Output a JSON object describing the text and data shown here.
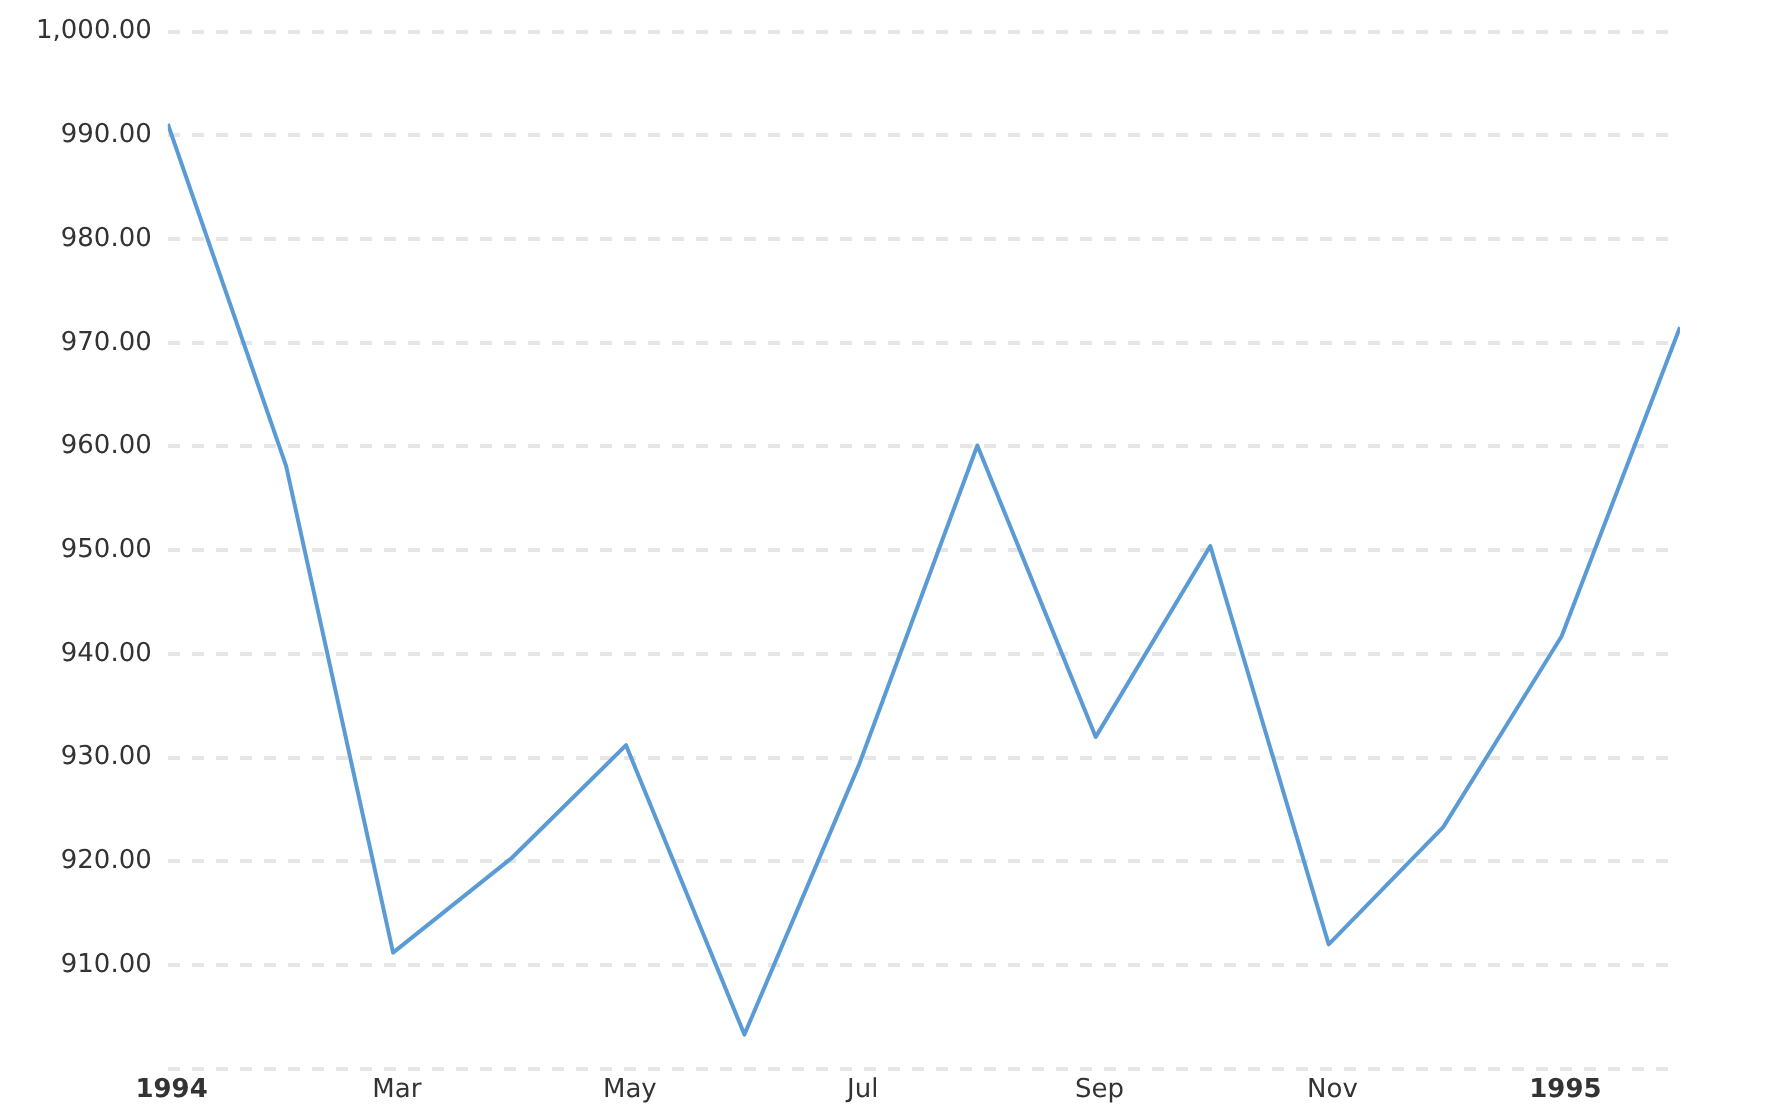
{
  "chart_data": {
    "type": "line",
    "x": [
      "1993-12-31",
      "1994-01-31",
      "1994-02-28",
      "1994-03-31",
      "1994-04-30",
      "1994-05-31",
      "1994-06-30",
      "1994-07-31",
      "1994-08-31",
      "1994-09-30",
      "1994-10-31",
      "1994-11-30",
      "1994-12-31",
      "1995-01-31"
    ],
    "series": [
      {
        "color": "#5b9bd5",
        "values": [
          991.1,
          958.1,
          911.2,
          920.3,
          931.2,
          903.3,
          929.3,
          960.1,
          932.0,
          950.4,
          912.0,
          923.3,
          941.7,
          971.5
        ]
      }
    ],
    "xlim": [
      "1993-12-31",
      "1995-01-31"
    ],
    "xticks": [
      {
        "value": "1994-01-01",
        "label": "1994"
      },
      {
        "value": "1994-03-01",
        "label": "Mar"
      },
      {
        "value": "1994-05-01",
        "label": "May"
      },
      {
        "value": "1994-07-01",
        "label": "Jul"
      },
      {
        "value": "1994-09-01",
        "label": "Sep"
      },
      {
        "value": "1994-11-01",
        "label": "Nov"
      },
      {
        "value": "1995-01-01",
        "label": "1995"
      }
    ],
    "ylim": [
      900,
      1000
    ],
    "yticks": [
      {
        "value": 900,
        "label": null
      },
      {
        "value": 910,
        "label": "910.00"
      },
      {
        "value": 920,
        "label": "920.00"
      },
      {
        "value": 930,
        "label": "930.00"
      },
      {
        "value": 940,
        "label": "940.00"
      },
      {
        "value": 950,
        "label": "950.00"
      },
      {
        "value": 960,
        "label": "960.00"
      },
      {
        "value": 970,
        "label": "970.00"
      },
      {
        "value": 980,
        "label": "980.00"
      },
      {
        "value": 990,
        "label": "990.00"
      },
      {
        "value": 1000,
        "label": "1,000.00"
      }
    ],
    "grid": "y",
    "legend": false,
    "marker": "none",
    "line_style": "solid"
  }
}
